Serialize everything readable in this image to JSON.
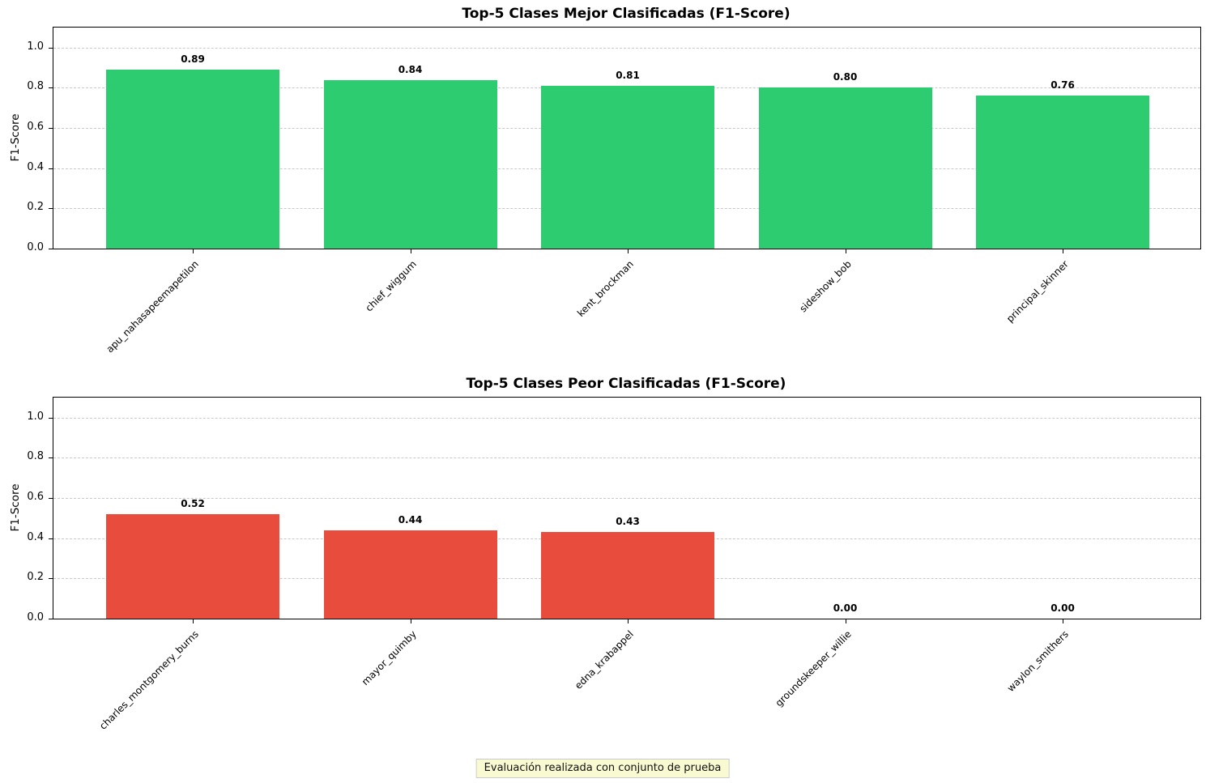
{
  "chart_data": [
    {
      "type": "bar",
      "title": "Top-5 Clases Mejor Clasificadas (F1-Score)",
      "ylabel": "F1-Score",
      "categories": [
        "apu_nahasapeemapetilon",
        "chief_wiggum",
        "kent_brockman",
        "sideshow_bob",
        "principal_skinner"
      ],
      "values": [
        0.89,
        0.84,
        0.81,
        0.8,
        0.76
      ],
      "value_labels": [
        "0.89",
        "0.84",
        "0.81",
        "0.80",
        "0.76"
      ],
      "bar_color": "#2ecc71",
      "ytick_labels": [
        "0.0",
        "0.2",
        "0.4",
        "0.6",
        "0.8",
        "1.0"
      ],
      "yticks": [
        0.0,
        0.2,
        0.4,
        0.6,
        0.8,
        1.0
      ],
      "ylim": [
        0,
        1.1
      ],
      "grid": "horizontal-dashed",
      "xtick_rotation": 45,
      "legend": "none"
    },
    {
      "type": "bar",
      "title": "Top-5 Clases Peor Clasificadas (F1-Score)",
      "ylabel": "F1-Score",
      "categories": [
        "charles_montgomery_burns",
        "mayor_quimby",
        "edna_krabappel",
        "groundskeeper_willie",
        "waylon_smithers"
      ],
      "values": [
        0.52,
        0.44,
        0.43,
        0.0,
        0.0
      ],
      "value_labels": [
        "0.52",
        "0.44",
        "0.43",
        "0.00",
        "0.00"
      ],
      "bar_color": "#e74c3c",
      "ytick_labels": [
        "0.0",
        "0.2",
        "0.4",
        "0.6",
        "0.8",
        "1.0"
      ],
      "yticks": [
        0.0,
        0.2,
        0.4,
        0.6,
        0.8,
        1.0
      ],
      "ylim": [
        0,
        1.1
      ],
      "grid": "horizontal-dashed",
      "xtick_rotation": 45,
      "legend": "none"
    }
  ],
  "footer": {
    "note": "Evaluación realizada con conjunto de prueba",
    "note_bg": "#fafad2"
  },
  "colors": {
    "best_bar": "#2ecc71",
    "worst_bar": "#e74c3c",
    "gridline": "#c9c9c9",
    "axis": "#000000"
  }
}
